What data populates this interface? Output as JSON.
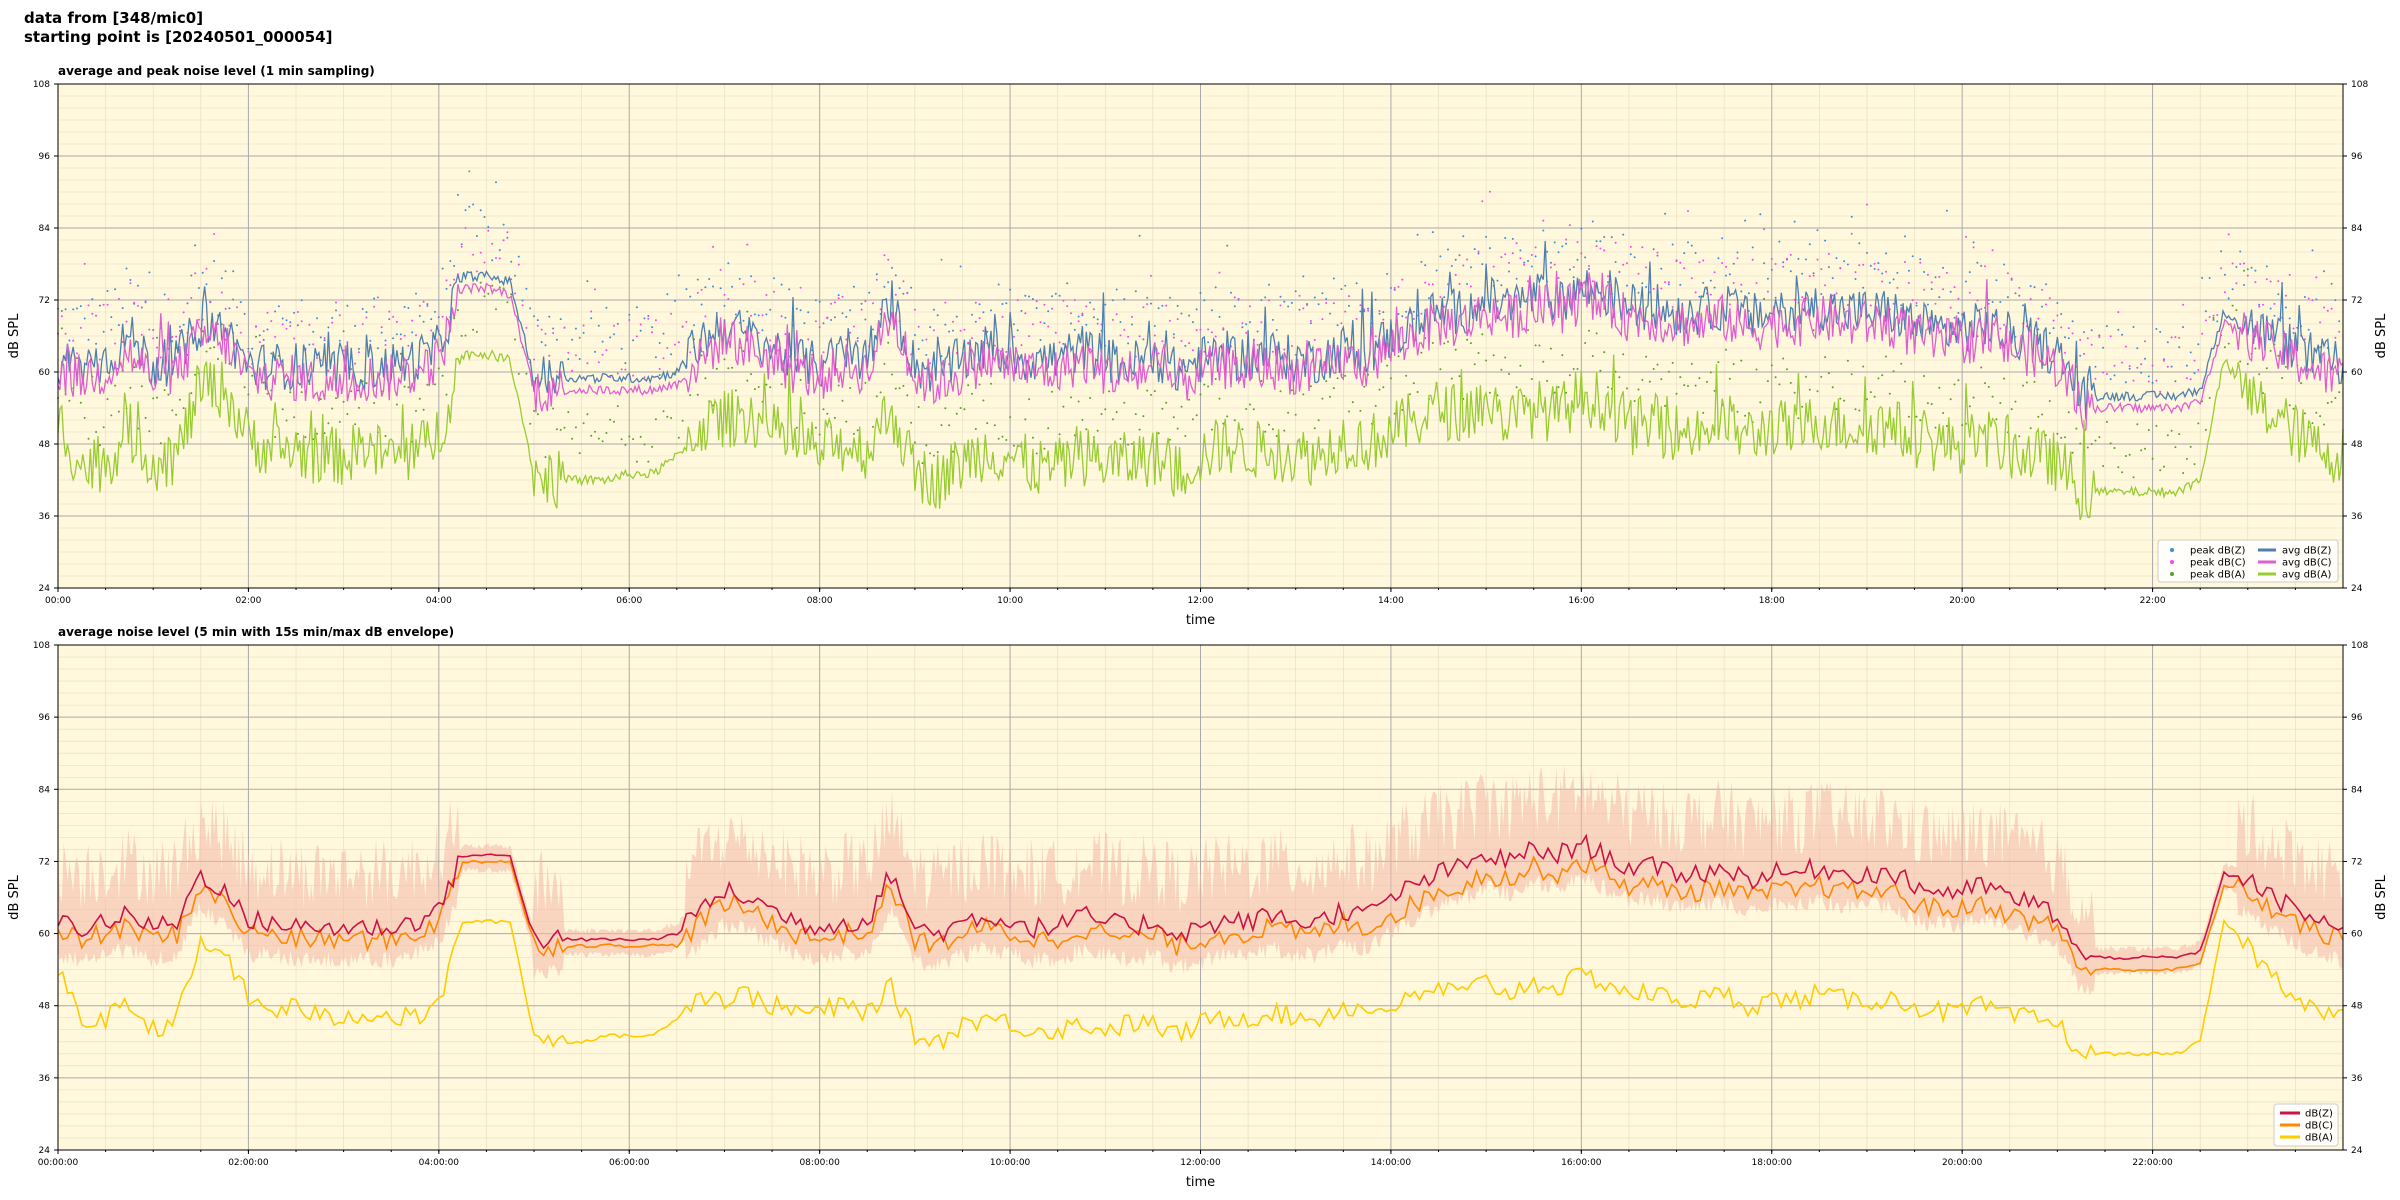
{
  "header": {
    "line1": "data from [348/mic0]",
    "line2": "starting point is [20240501_000054]"
  },
  "chart_data": [
    {
      "type": "line",
      "title": "average and peak noise level (1 min sampling)",
      "xlabel": "time",
      "ylabel": "dB SPL",
      "ylim": [
        24,
        108
      ],
      "xlim_hours": [
        0,
        24
      ],
      "yticks": [
        "24",
        "36",
        "48",
        "60",
        "72",
        "84",
        "96",
        "108"
      ],
      "xticks": [
        "00:00",
        "02:00",
        "04:00",
        "06:00",
        "08:00",
        "10:00",
        "12:00",
        "14:00",
        "16:00",
        "18:00",
        "20:00",
        "22:00"
      ],
      "grid": true,
      "legend_position": "bottom-right",
      "x_hours": [
        0,
        0.25,
        0.5,
        0.75,
        1,
        1.25,
        1.5,
        1.75,
        2,
        2.25,
        2.5,
        2.75,
        3,
        3.25,
        3.5,
        3.75,
        4,
        4.25,
        4.5,
        4.75,
        5,
        5.25,
        5.5,
        5.75,
        6,
        6.25,
        6.5,
        6.75,
        7,
        7.25,
        7.5,
        7.75,
        8,
        8.25,
        8.5,
        8.75,
        9,
        9.25,
        9.5,
        9.75,
        10,
        10.25,
        10.5,
        10.75,
        11,
        11.25,
        11.5,
        11.75,
        12,
        12.25,
        12.5,
        12.75,
        13,
        13.25,
        13.5,
        13.75,
        14,
        14.25,
        14.5,
        14.75,
        15,
        15.25,
        15.5,
        15.75,
        16,
        16.25,
        16.5,
        16.75,
        17,
        17.25,
        17.5,
        17.75,
        18,
        18.25,
        18.5,
        18.75,
        19,
        19.25,
        19.5,
        19.75,
        20,
        20.25,
        20.5,
        20.75,
        21,
        21.25,
        21.5,
        21.75,
        22,
        22.25,
        22.5,
        22.75,
        23,
        23.25,
        23.5,
        23.75,
        24
      ],
      "series": [
        {
          "name": "avg dB(Z)",
          "kind": "line",
          "color": "#4f7faf",
          "values": [
            62,
            61,
            62,
            66,
            61,
            62,
            68,
            67,
            61,
            61,
            61,
            60,
            60,
            61,
            61,
            62,
            64,
            76,
            76,
            75,
            59,
            59,
            59,
            59,
            59,
            59,
            60,
            65,
            68,
            66,
            64,
            62,
            61,
            63,
            62,
            72,
            61,
            60,
            62,
            64,
            63,
            62,
            62,
            64,
            62,
            61,
            63,
            60,
            62,
            63,
            62,
            63,
            62,
            62,
            64,
            63,
            66,
            68,
            70,
            70,
            72,
            71,
            73,
            72,
            74,
            73,
            71,
            71,
            70,
            70,
            71,
            69,
            70,
            70,
            71,
            70,
            70,
            70,
            68,
            67,
            67,
            68,
            66,
            65,
            63,
            56,
            56,
            56,
            56,
            56,
            57,
            70,
            68,
            66,
            64,
            62,
            61
          ]
        },
        {
          "name": "avg dB(C)",
          "kind": "line",
          "color": "#e05fd0",
          "values": [
            60,
            59,
            60,
            63,
            59,
            60,
            66,
            65,
            59,
            59,
            59,
            58,
            58,
            59,
            59,
            60,
            62,
            74,
            74,
            73,
            57,
            57,
            57,
            57,
            57,
            57,
            58,
            62,
            66,
            64,
            62,
            60,
            59,
            61,
            60,
            70,
            59,
            58,
            60,
            62,
            61,
            60,
            60,
            62,
            60,
            59,
            61,
            58,
            60,
            61,
            60,
            61,
            60,
            60,
            62,
            61,
            64,
            66,
            68,
            68,
            70,
            69,
            71,
            70,
            72,
            71,
            69,
            69,
            68,
            68,
            69,
            67,
            68,
            68,
            69,
            68,
            68,
            68,
            66,
            65,
            65,
            66,
            64,
            63,
            61,
            54,
            54,
            54,
            54,
            54,
            55,
            68,
            66,
            64,
            62,
            60,
            59
          ]
        },
        {
          "name": "avg dB(A)",
          "kind": "line",
          "color": "#99cc33",
          "values": [
            52,
            44,
            45,
            50,
            45,
            46,
            58,
            57,
            49,
            47,
            47,
            46,
            46,
            47,
            46,
            46,
            50,
            63,
            63,
            62,
            43,
            42,
            42,
            42,
            43,
            43,
            46,
            51,
            52,
            53,
            50,
            48,
            47,
            48,
            47,
            54,
            43,
            42,
            45,
            47,
            46,
            44,
            44,
            46,
            45,
            45,
            46,
            43,
            46,
            48,
            47,
            47,
            46,
            46,
            49,
            48,
            50,
            52,
            54,
            53,
            55,
            52,
            54,
            53,
            56,
            55,
            51,
            51,
            50,
            50,
            52,
            49,
            51,
            50,
            52,
            51,
            51,
            51,
            49,
            48,
            48,
            49,
            47,
            46,
            45,
            40,
            40,
            40,
            40,
            40,
            42,
            62,
            56,
            53,
            50,
            47,
            46
          ]
        },
        {
          "name": "peak dB(Z)",
          "kind": "points",
          "color": "#3a8fd9"
        },
        {
          "name": "peak dB(C)",
          "kind": "points",
          "color": "#ff44ee"
        },
        {
          "name": "peak dB(A)",
          "kind": "points",
          "color": "#5aa02c"
        }
      ],
      "legend": [
        {
          "label": "peak dB(Z)",
          "color": "#3a8fd9",
          "kind": "point"
        },
        {
          "label": "peak dB(C)",
          "color": "#ff44ee",
          "kind": "point"
        },
        {
          "label": "peak dB(A)",
          "color": "#5aa02c",
          "kind": "point"
        },
        {
          "label": "avg dB(Z)",
          "color": "#4f7faf",
          "kind": "line"
        },
        {
          "label": "avg dB(C)",
          "color": "#e05fd0",
          "kind": "line"
        },
        {
          "label": "avg dB(A)",
          "color": "#99cc33",
          "kind": "line"
        }
      ]
    },
    {
      "type": "line",
      "title": "average noise level (5 min with 15s min/max dB envelope)",
      "xlabel": "time",
      "ylabel": "dB SPL",
      "ylim": [
        24,
        108
      ],
      "xlim_hours": [
        0,
        24
      ],
      "yticks": [
        "24",
        "36",
        "48",
        "60",
        "72",
        "84",
        "96",
        "108"
      ],
      "xticks": [
        "00:00:00",
        "02:00:00",
        "04:00:00",
        "06:00:00",
        "08:00:00",
        "10:00:00",
        "12:00:00",
        "14:00:00",
        "16:00:00",
        "18:00:00",
        "20:00:00",
        "22:00:00"
      ],
      "grid": true,
      "legend_position": "bottom-right",
      "x_hours": [
        0,
        0.25,
        0.5,
        0.75,
        1,
        1.25,
        1.5,
        1.75,
        2,
        2.25,
        2.5,
        2.75,
        3,
        3.25,
        3.5,
        3.75,
        4,
        4.25,
        4.5,
        4.75,
        5,
        5.25,
        5.5,
        5.75,
        6,
        6.25,
        6.5,
        6.75,
        7,
        7.25,
        7.5,
        7.75,
        8,
        8.25,
        8.5,
        8.75,
        9,
        9.25,
        9.5,
        9.75,
        10,
        10.25,
        10.5,
        10.75,
        11,
        11.25,
        11.5,
        11.75,
        12,
        12.25,
        12.5,
        12.75,
        13,
        13.25,
        13.5,
        13.75,
        14,
        14.25,
        14.5,
        14.75,
        15,
        15.25,
        15.5,
        15.75,
        16,
        16.25,
        16.5,
        16.75,
        17,
        17.25,
        17.5,
        17.75,
        18,
        18.25,
        18.5,
        18.75,
        19,
        19.25,
        19.5,
        19.75,
        20,
        20.25,
        20.5,
        20.75,
        21,
        21.25,
        21.5,
        21.75,
        22,
        22.25,
        22.5,
        22.75,
        23,
        23.25,
        23.5,
        23.75,
        24
      ],
      "series": [
        {
          "name": "dB(Z)",
          "color": "#cc1144",
          "values": [
            62,
            61,
            62,
            63,
            61,
            62,
            70,
            67,
            62,
            62,
            61,
            61,
            61,
            61,
            61,
            62,
            64,
            73,
            73,
            73,
            59,
            59,
            59,
            59,
            59,
            59,
            60,
            64,
            67,
            66,
            64,
            62,
            61,
            62,
            62,
            70,
            61,
            60,
            62,
            63,
            62,
            61,
            61,
            63,
            62,
            61,
            62,
            60,
            61,
            62,
            62,
            63,
            62,
            62,
            64,
            63,
            66,
            68,
            70,
            71,
            73,
            72,
            74,
            73,
            75,
            73,
            71,
            71,
            70,
            70,
            71,
            69,
            70,
            70,
            71,
            70,
            70,
            70,
            68,
            67,
            67,
            68,
            66,
            65,
            63,
            56,
            56,
            56,
            56,
            56,
            57,
            70,
            69,
            66,
            64,
            62,
            61
          ]
        },
        {
          "name": "dB(C)",
          "color": "#ff8800",
          "values": [
            60,
            59,
            60,
            61,
            59,
            60,
            68,
            65,
            60,
            60,
            59,
            59,
            59,
            59,
            59,
            60,
            62,
            72,
            72,
            72,
            58,
            58,
            58,
            58,
            58,
            58,
            58,
            62,
            65,
            64,
            62,
            60,
            59,
            60,
            60,
            68,
            59,
            58,
            60,
            61,
            60,
            59,
            59,
            61,
            60,
            59,
            60,
            58,
            59,
            60,
            60,
            61,
            60,
            60,
            62,
            61,
            63,
            65,
            67,
            68,
            70,
            69,
            71,
            70,
            72,
            70,
            68,
            68,
            67,
            67,
            68,
            66,
            67,
            67,
            68,
            67,
            67,
            67,
            65,
            64,
            64,
            65,
            63,
            62,
            61,
            54,
            54,
            54,
            54,
            54,
            55,
            68,
            67,
            64,
            62,
            60,
            59
          ]
        },
        {
          "name": "dB(A)",
          "color": "#ffcc00",
          "values": [
            54,
            45,
            46,
            48,
            44,
            46,
            58,
            57,
            49,
            47,
            48,
            46,
            46,
            47,
            46,
            46,
            48,
            62,
            62,
            62,
            43,
            42,
            42,
            43,
            43,
            43,
            46,
            50,
            49,
            50,
            48,
            47,
            47,
            48,
            47,
            51,
            43,
            42,
            45,
            46,
            45,
            44,
            44,
            45,
            44,
            45,
            45,
            43,
            45,
            46,
            46,
            47,
            46,
            46,
            48,
            47,
            48,
            49,
            51,
            50,
            52,
            50,
            52,
            51,
            53,
            52,
            50,
            50,
            49,
            49,
            50,
            48,
            49,
            49,
            50,
            49,
            49,
            49,
            48,
            47,
            47,
            48,
            46,
            46,
            45,
            40,
            40,
            40,
            40,
            40,
            42,
            62,
            58,
            53,
            50,
            47,
            46
          ]
        }
      ],
      "envelope_color": "#f4b8a8",
      "legend": [
        {
          "label": "dB(Z)",
          "color": "#cc1144"
        },
        {
          "label": "dB(C)",
          "color": "#ff8800"
        },
        {
          "label": "dB(A)",
          "color": "#ffcc00"
        }
      ]
    }
  ]
}
